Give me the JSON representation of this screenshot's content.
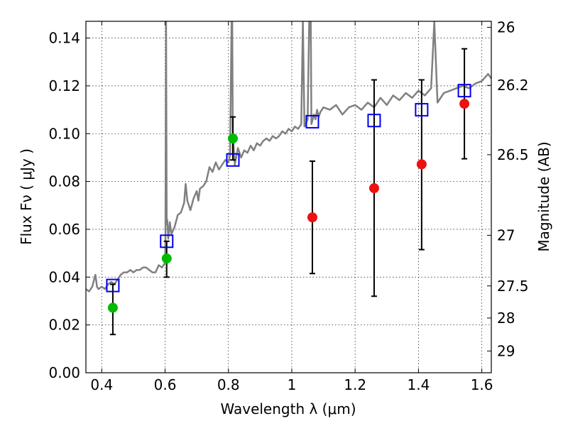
{
  "chart_data": {
    "type": "scatter",
    "title": "",
    "xlabel": "Wavelength  λ (μm)",
    "ylabel": "Flux  Fν ( μJy )",
    "ylabel_right": "Magnitude (AB)",
    "xlim": [
      0.35,
      1.63
    ],
    "ylim": [
      0.0,
      0.147
    ],
    "grid": true,
    "x_ticks": [
      0.4,
      0.6,
      0.8,
      1.0,
      1.2,
      1.4,
      1.6
    ],
    "x_tick_labels": [
      "0.4",
      "0.6",
      "0.8",
      "1",
      "1.2",
      "1.4",
      "1.6"
    ],
    "y_ticks": [
      0.0,
      0.02,
      0.04,
      0.06,
      0.08,
      0.1,
      0.12,
      0.14
    ],
    "y_tick_labels": [
      "0.00",
      "0.02",
      "0.04",
      "0.06",
      "0.08",
      "0.10",
      "0.12",
      "0.14"
    ],
    "right_axis": {
      "ticks": [
        {
          "label": "26",
          "flux": 0.1445
        },
        {
          "label": "26.2",
          "flux": 0.1202
        },
        {
          "label": "26.5",
          "flux": 0.0912
        },
        {
          "label": "27",
          "flux": 0.0575
        },
        {
          "label": "27.5",
          "flux": 0.0363
        },
        {
          "label": "28",
          "flux": 0.0229
        },
        {
          "label": "29",
          "flux": 0.0091
        }
      ]
    },
    "colors": {
      "spectrum": "#808080",
      "green_points": "#00bb00",
      "red_points": "#ee1111",
      "model_squares": "#0000ee",
      "error_bars": "#000000"
    },
    "series": [
      {
        "kind": "spectrum",
        "x": [
          0.35,
          0.36,
          0.37,
          0.38,
          0.385,
          0.39,
          0.4,
          0.41,
          0.42,
          0.43,
          0.44,
          0.45,
          0.46,
          0.47,
          0.48,
          0.49,
          0.5,
          0.51,
          0.52,
          0.53,
          0.54,
          0.55,
          0.56,
          0.57,
          0.58,
          0.59,
          0.6,
          0.601,
          0.603,
          0.605,
          0.607,
          0.61,
          0.615,
          0.62,
          0.63,
          0.64,
          0.65,
          0.66,
          0.665,
          0.67,
          0.68,
          0.69,
          0.7,
          0.705,
          0.71,
          0.72,
          0.73,
          0.74,
          0.75,
          0.76,
          0.77,
          0.78,
          0.79,
          0.8,
          0.805,
          0.81,
          0.812,
          0.814,
          0.816,
          0.82,
          0.83,
          0.84,
          0.85,
          0.86,
          0.87,
          0.88,
          0.89,
          0.9,
          0.91,
          0.92,
          0.93,
          0.94,
          0.95,
          0.96,
          0.97,
          0.98,
          0.99,
          1.0,
          1.01,
          1.02,
          1.03,
          1.035,
          1.04,
          1.05,
          1.055,
          1.06,
          1.062,
          1.07,
          1.075,
          1.08,
          1.085,
          1.09,
          1.1,
          1.12,
          1.14,
          1.16,
          1.18,
          1.2,
          1.22,
          1.24,
          1.26,
          1.28,
          1.3,
          1.32,
          1.34,
          1.36,
          1.38,
          1.4,
          1.42,
          1.44,
          1.45,
          1.46,
          1.48,
          1.5,
          1.52,
          1.54,
          1.56,
          1.58,
          1.6,
          1.62,
          1.63
        ],
        "y": [
          0.035,
          0.034,
          0.036,
          0.041,
          0.036,
          0.035,
          0.036,
          0.035,
          0.037,
          0.038,
          0.037,
          0.039,
          0.041,
          0.042,
          0.042,
          0.043,
          0.042,
          0.043,
          0.043,
          0.044,
          0.044,
          0.043,
          0.042,
          0.042,
          0.045,
          0.044,
          0.046,
          0.055,
          0.147,
          0.062,
          0.064,
          0.056,
          0.063,
          0.058,
          0.061,
          0.066,
          0.067,
          0.071,
          0.079,
          0.072,
          0.068,
          0.073,
          0.076,
          0.072,
          0.077,
          0.078,
          0.08,
          0.086,
          0.084,
          0.088,
          0.085,
          0.087,
          0.089,
          0.088,
          0.091,
          0.147,
          0.147,
          0.091,
          0.096,
          0.087,
          0.094,
          0.09,
          0.093,
          0.092,
          0.095,
          0.093,
          0.096,
          0.095,
          0.097,
          0.098,
          0.097,
          0.099,
          0.098,
          0.099,
          0.101,
          0.1,
          0.102,
          0.101,
          0.103,
          0.102,
          0.104,
          0.147,
          0.103,
          0.106,
          0.147,
          0.147,
          0.104,
          0.108,
          0.106,
          0.11,
          0.107,
          0.109,
          0.111,
          0.11,
          0.112,
          0.108,
          0.111,
          0.112,
          0.11,
          0.113,
          0.111,
          0.115,
          0.112,
          0.116,
          0.114,
          0.117,
          0.115,
          0.118,
          0.116,
          0.119,
          0.147,
          0.113,
          0.117,
          0.118,
          0.119,
          0.12,
          0.119,
          0.121,
          0.122,
          0.125,
          0.123
        ]
      },
      {
        "kind": "points",
        "color": "green",
        "x": [
          0.435,
          0.605,
          0.814
        ],
        "y": [
          0.0272,
          0.0478,
          0.098
        ]
      },
      {
        "kind": "points",
        "color": "red",
        "x": [
          1.065,
          1.26,
          1.41,
          1.545
        ],
        "y": [
          0.065,
          0.0772,
          0.0872,
          0.1125
        ]
      },
      {
        "kind": "error_bars",
        "x": [
          0.435,
          0.605,
          0.814,
          1.065,
          1.26,
          1.41,
          1.545
        ],
        "y_low": [
          0.016,
          0.04,
          0.089,
          0.0415,
          0.032,
          0.0515,
          0.0895
        ],
        "y_high": [
          0.037,
          0.055,
          0.107,
          0.0885,
          0.1225,
          0.1225,
          0.1355
        ]
      },
      {
        "kind": "model_squares",
        "x": [
          0.435,
          0.605,
          0.814,
          1.065,
          1.26,
          1.41,
          1.545
        ],
        "y": [
          0.0365,
          0.055,
          0.089,
          0.105,
          0.1055,
          0.11,
          0.118
        ]
      }
    ]
  }
}
